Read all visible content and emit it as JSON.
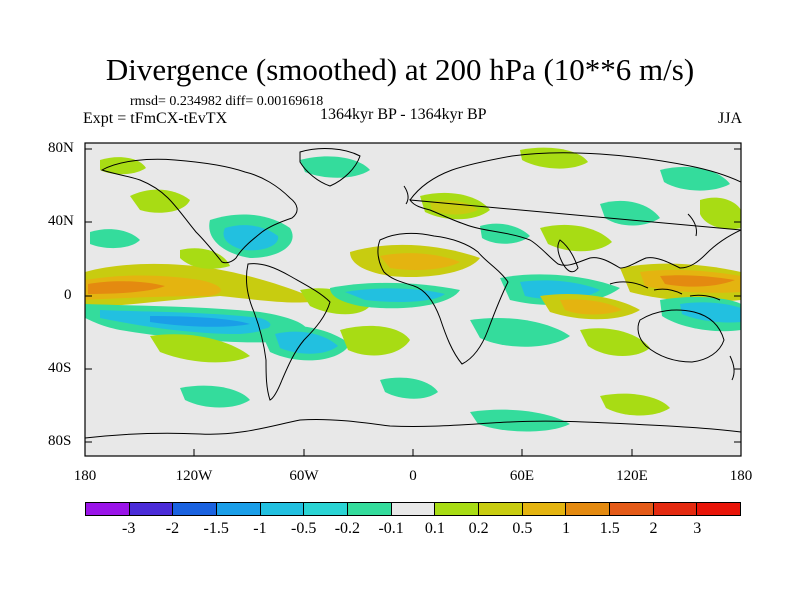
{
  "title": "Divergence (smoothed) at 200 hPa (10**6 m/s)",
  "stats": "rmsd= 0.234982  diff= 0.00169618",
  "experiment": "Expt = tFmCX-tEvTX",
  "period": "1364kyr BP - 1364kyr BP",
  "season": "JJA",
  "lat_labels": [
    "80N",
    "40N",
    "0",
    "40S",
    "80S"
  ],
  "lon_labels": [
    "180",
    "120W",
    "60W",
    "0",
    "60E",
    "120E",
    "180"
  ],
  "colorbar": {
    "labels": [
      "-3",
      "-2",
      "-1.5",
      "-1",
      "-0.5",
      "-0.2",
      "-0.1",
      "0.1",
      "0.2",
      "0.5",
      "1",
      "1.5",
      "2",
      "3"
    ],
    "colors": [
      "#9a14e8",
      "#4b2cd8",
      "#1a62e0",
      "#1a9ee8",
      "#22c0e0",
      "#2ad4d4",
      "#34dc9c",
      "#e8e8e8",
      "#a8dc14",
      "#c8cc10",
      "#e4b410",
      "#e48a10",
      "#e45a18",
      "#e42a10",
      "#e81408"
    ]
  },
  "colors": {
    "background": "#e8e8e8",
    "coast": "#000000"
  }
}
